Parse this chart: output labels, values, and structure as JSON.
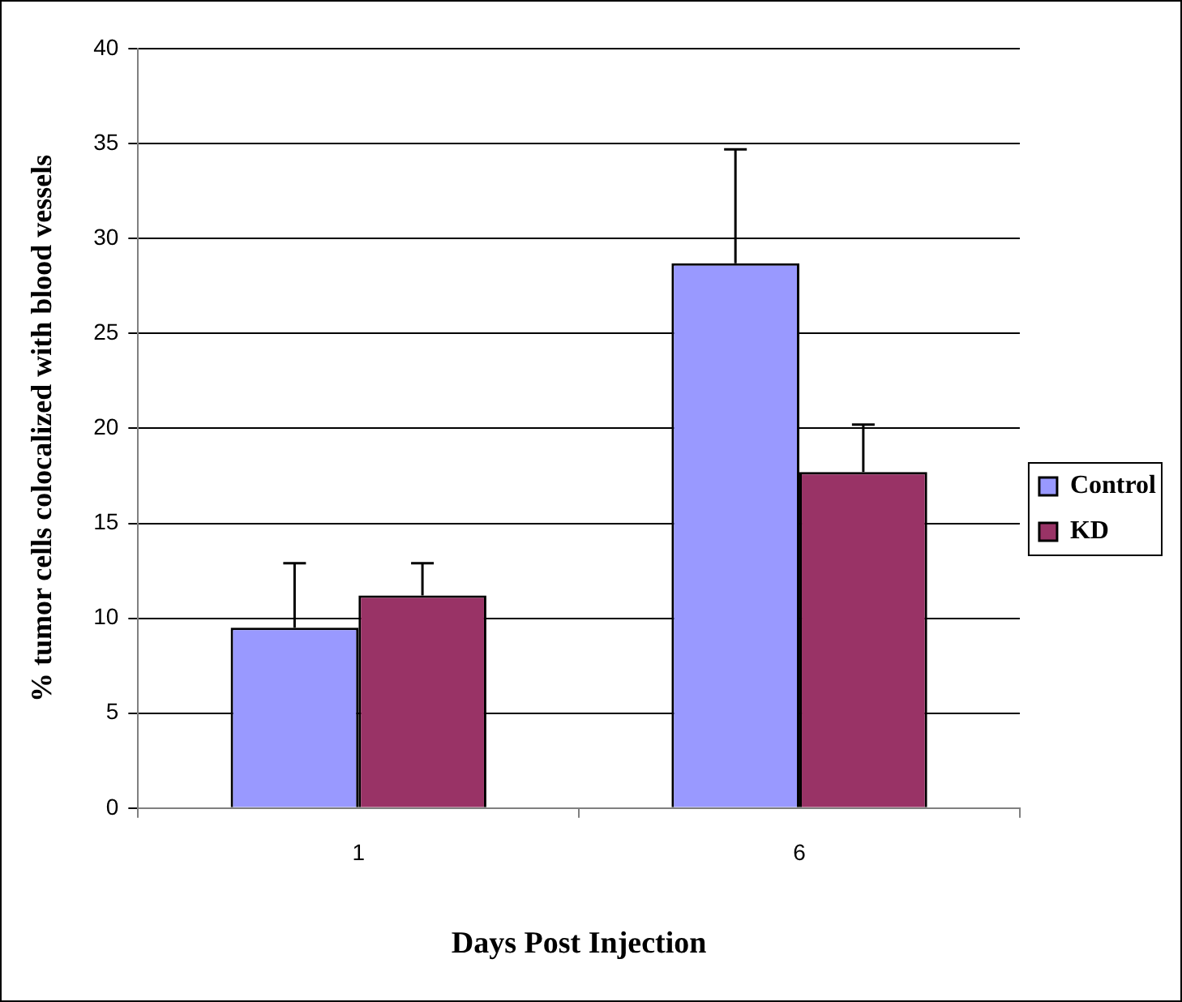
{
  "chart_data": {
    "type": "bar",
    "xlabel": "Days Post Injection",
    "ylabel": "% tumor cells colocalized with blood vessels",
    "categories": [
      "1",
      "6"
    ],
    "series": [
      {
        "name": "Control",
        "color": "#9999ff",
        "values": [
          9.5,
          28.7
        ],
        "errors": [
          [
            9.5,
            12.9
          ],
          [
            28.7,
            34.7
          ]
        ]
      },
      {
        "name": "KD",
        "color": "#993366",
        "values": [
          11.2,
          17.7
        ],
        "errors": [
          [
            11.2,
            12.9
          ],
          [
            17.7,
            20.2
          ]
        ]
      }
    ],
    "ylim": [
      0,
      40
    ],
    "yticks": [
      0,
      5,
      10,
      15,
      20,
      25,
      30,
      35,
      40
    ],
    "grid": "y",
    "legend": "right"
  }
}
